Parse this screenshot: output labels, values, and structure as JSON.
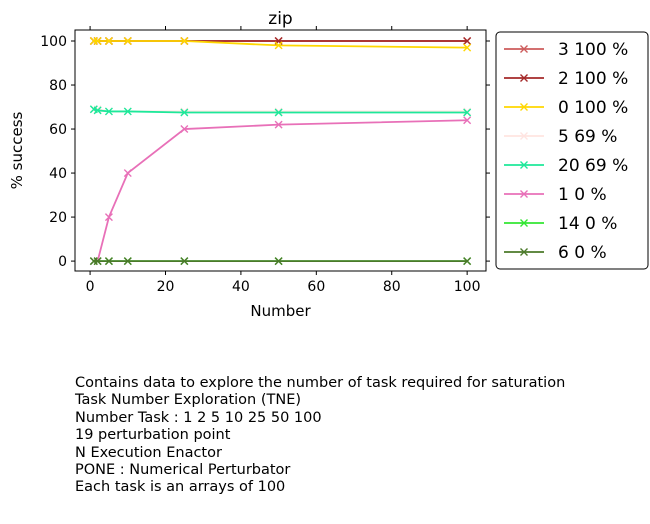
{
  "chart_data": {
    "type": "line",
    "title": "zip",
    "xlabel": "Number",
    "ylabel": "% success",
    "xlim": [
      -4,
      105
    ],
    "ylim": [
      -4.5,
      105
    ],
    "xticks": [
      0,
      20,
      40,
      60,
      80,
      100
    ],
    "yticks": [
      0,
      20,
      40,
      60,
      80,
      100
    ],
    "grid": false,
    "legend_placement": "outside-right",
    "x": [
      1,
      2,
      5,
      10,
      25,
      50,
      100
    ],
    "series": [
      {
        "name": "3 100 %",
        "color": "#cd5c5c",
        "values": [
          100,
          100,
          100,
          100,
          100,
          100,
          100
        ]
      },
      {
        "name": "2 100 %",
        "color": "#a52a2a",
        "values": [
          100,
          100,
          100,
          100,
          100,
          100,
          100
        ]
      },
      {
        "name": "0 100 %",
        "color": "#ffd700",
        "values": [
          100,
          100,
          100,
          100,
          100,
          98,
          97
        ]
      },
      {
        "name": "5 69 %",
        "color": "#ffe4e1",
        "values": [
          69,
          69,
          68,
          68,
          68,
          68,
          68
        ]
      },
      {
        "name": "20 69 %",
        "color": "#1ee89a",
        "values": [
          69,
          68.5,
          68,
          68,
          67.5,
          67.5,
          67.5
        ]
      },
      {
        "name": "1 0 %",
        "color": "#e870b8",
        "values": [
          0,
          0,
          20,
          40,
          60,
          62,
          64
        ]
      },
      {
        "name": "14 0 %",
        "color": "#32e632",
        "values": [
          0,
          0,
          0,
          0,
          0,
          0,
          0
        ]
      },
      {
        "name": "6 0 %",
        "color": "#4b7a2a",
        "values": [
          0,
          0,
          0,
          0,
          0,
          0,
          0
        ]
      }
    ]
  },
  "caption": [
    "Contains data to explore the number of task required for saturation",
    "Task Number Exploration (TNE)",
    "Number Task : 1 2 5 10 25 50 100",
    "19 perturbation point",
    "N Execution Enactor",
    "PONE : Numerical Perturbator",
    "Each task is an arrays of 100"
  ]
}
